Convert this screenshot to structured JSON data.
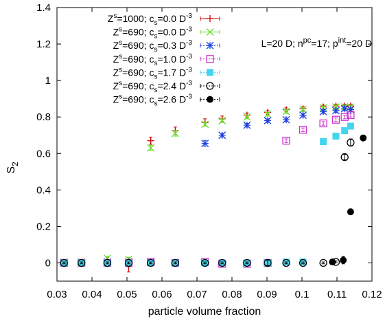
{
  "chart_data": {
    "type": "scatter",
    "xlabel": "particle volume fraction",
    "ylabel_main": "S",
    "ylabel_sub": "2",
    "xlim": [
      0.03,
      0.12
    ],
    "ylim": [
      -0.1,
      1.4
    ],
    "xticks": [
      "0.03",
      "0.04",
      "0.05",
      "0.06",
      "0.07",
      "0.08",
      "0.09",
      "0.1",
      "0.11",
      "0.12"
    ],
    "yticks": [
      "0",
      "0.2",
      "0.4",
      "0.6",
      "0.8",
      "1",
      "1.2",
      "1.4"
    ],
    "annotation": {
      "parts": [
        "L=20 D; n",
        "pc",
        "=17; p",
        "int",
        "=20 D"
      ]
    },
    "legend": [
      {
        "z": "1000",
        "cs": "0.0"
      },
      {
        "z": "690",
        "cs": "0.0"
      },
      {
        "z": "690",
        "cs": "0.3"
      },
      {
        "z": "690",
        "cs": "1.0"
      },
      {
        "z": "690",
        "cs": "1.7"
      },
      {
        "z": "690",
        "cs": "2.4"
      },
      {
        "z": "690",
        "cs": "2.6"
      }
    ],
    "legend_tokens": {
      "z": "Z",
      "z_sup": "s",
      "cs": "c",
      "cs_sub": "s",
      "unit": "D",
      "unit_sup": "-3"
    },
    "series": [
      {
        "marker": "plus",
        "color": "#cc0000",
        "points": [
          [
            0.032,
            0.0,
            0.01
          ],
          [
            0.037,
            0.0,
            0.01
          ],
          [
            0.0444,
            0.015,
            0.015
          ],
          [
            0.0505,
            -0.02,
            0.03
          ],
          [
            0.0568,
            0.67,
            0.02
          ],
          [
            0.0638,
            0.725,
            0.02
          ],
          [
            0.0723,
            0.77,
            0.02
          ],
          [
            0.0772,
            0.79,
            0.015
          ],
          [
            0.0843,
            0.81,
            0.01
          ],
          [
            0.0902,
            0.825,
            0.01
          ],
          [
            0.0955,
            0.84,
            0.01
          ],
          [
            0.1003,
            0.845,
            0.01
          ],
          [
            0.1061,
            0.855,
            0.01
          ],
          [
            0.1097,
            0.86,
            0.01
          ],
          [
            0.1122,
            0.86,
            0.01
          ],
          [
            0.1139,
            0.86,
            0.01
          ]
        ]
      },
      {
        "marker": "x",
        "color": "#66dd22",
        "points": [
          [
            0.032,
            0.005,
            0.01
          ],
          [
            0.037,
            0.005,
            0.01
          ],
          [
            0.0444,
            0.025,
            0.01
          ],
          [
            0.0505,
            0.02,
            0.01
          ],
          [
            0.0568,
            0.63,
            0.015
          ],
          [
            0.0638,
            0.71,
            0.015
          ],
          [
            0.0723,
            0.76,
            0.01
          ],
          [
            0.0772,
            0.78,
            0.01
          ],
          [
            0.0843,
            0.8,
            0.01
          ],
          [
            0.0902,
            0.815,
            0.01
          ],
          [
            0.0955,
            0.83,
            0.01
          ],
          [
            0.1003,
            0.84,
            0.01
          ],
          [
            0.1061,
            0.85,
            0.01
          ],
          [
            0.1097,
            0.855,
            0.01
          ],
          [
            0.1122,
            0.855,
            0.01
          ],
          [
            0.1139,
            0.855,
            0.01
          ]
        ]
      },
      {
        "marker": "star",
        "color": "#1a3fe0",
        "points": [
          [
            0.032,
            0.0,
            0.005
          ],
          [
            0.037,
            0.0,
            0.005
          ],
          [
            0.0444,
            0.005,
            0.005
          ],
          [
            0.0505,
            0.005,
            0.005
          ],
          [
            0.0568,
            0.005,
            0.005
          ],
          [
            0.0638,
            0.0,
            0.005
          ],
          [
            0.0723,
            0.655,
            0.015
          ],
          [
            0.0772,
            0.7,
            0.01
          ],
          [
            0.0843,
            0.755,
            0.01
          ],
          [
            0.0902,
            0.78,
            0.01
          ],
          [
            0.0955,
            0.785,
            0.01
          ],
          [
            0.1003,
            0.81,
            0.01
          ],
          [
            0.1061,
            0.83,
            0.01
          ],
          [
            0.1097,
            0.835,
            0.01
          ],
          [
            0.1122,
            0.845,
            0.01
          ],
          [
            0.1139,
            0.84,
            0.01
          ]
        ]
      },
      {
        "marker": "square-open",
        "color": "#cc33cc",
        "points": [
          [
            0.032,
            0.0,
            0.005
          ],
          [
            0.037,
            0.0,
            0.005
          ],
          [
            0.0444,
            0.0,
            0.005
          ],
          [
            0.0505,
            0.0,
            0.005
          ],
          [
            0.0568,
            0.005,
            0.005
          ],
          [
            0.0638,
            0.0,
            0.005
          ],
          [
            0.0723,
            0.005,
            0.005
          ],
          [
            0.0772,
            -0.005,
            0.005
          ],
          [
            0.0843,
            -0.005,
            0.005
          ],
          [
            0.0902,
            0.0,
            0.005
          ],
          [
            0.0955,
            0.67,
            0.01
          ],
          [
            0.1003,
            0.73,
            0.01
          ],
          [
            0.1061,
            0.765,
            0.01
          ],
          [
            0.1097,
            0.785,
            0.01
          ],
          [
            0.1122,
            0.8,
            0.01
          ],
          [
            0.1139,
            0.81,
            0.01
          ]
        ]
      },
      {
        "marker": "square-filled",
        "color": "#44d4ee",
        "points": [
          [
            0.032,
            0.0,
            0.005
          ],
          [
            0.037,
            0.0,
            0.005
          ],
          [
            0.0444,
            0.0,
            0.005
          ],
          [
            0.0505,
            0.0,
            0.005
          ],
          [
            0.0568,
            0.0,
            0.005
          ],
          [
            0.0638,
            0.0,
            0.005
          ],
          [
            0.0723,
            0.0,
            0.005
          ],
          [
            0.0772,
            0.0,
            0.005
          ],
          [
            0.0843,
            0.0,
            0.005
          ],
          [
            0.0902,
            0.0,
            0.005
          ],
          [
            0.0955,
            0.005,
            0.005
          ],
          [
            0.1003,
            0.005,
            0.005
          ],
          [
            0.1061,
            0.665,
            0.01
          ],
          [
            0.1097,
            0.695,
            0.01
          ],
          [
            0.1122,
            0.725,
            0.01
          ],
          [
            0.1139,
            0.75,
            0.01
          ]
        ]
      },
      {
        "marker": "circle-open",
        "color": "#000000",
        "points": [
          [
            0.032,
            0.0,
            0.005
          ],
          [
            0.037,
            0.0,
            0.005
          ],
          [
            0.0444,
            0.0,
            0.005
          ],
          [
            0.0505,
            0.0,
            0.005
          ],
          [
            0.0568,
            0.0,
            0.005
          ],
          [
            0.0638,
            0.0,
            0.005
          ],
          [
            0.0723,
            0.0,
            0.005
          ],
          [
            0.0772,
            0.0,
            0.005
          ],
          [
            0.0843,
            0.0,
            0.005
          ],
          [
            0.0902,
            0.0,
            0.015
          ],
          [
            0.0955,
            0.0,
            0.005
          ],
          [
            0.1003,
            0.0,
            0.005
          ],
          [
            0.1061,
            0.0,
            0.005
          ],
          [
            0.1097,
            0.005,
            0.005
          ],
          [
            0.1122,
            0.58,
            0.015
          ],
          [
            0.1139,
            0.66,
            0.02
          ]
        ]
      },
      {
        "marker": "circle-filled",
        "color": "#000000",
        "points": [
          [
            0.1087,
            0.005,
            0.005
          ],
          [
            0.1118,
            0.015,
            0.02
          ],
          [
            0.1139,
            0.28,
            0.015
          ],
          [
            0.1175,
            0.685,
            0.01
          ]
        ]
      }
    ]
  }
}
